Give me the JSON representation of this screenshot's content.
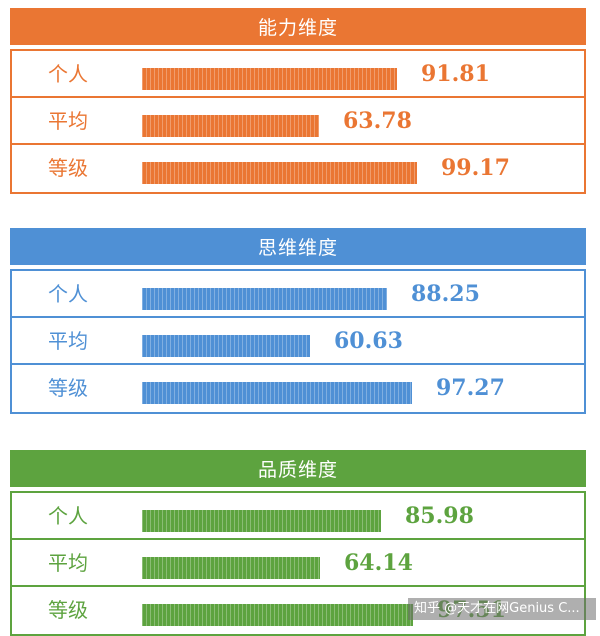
{
  "chart_data": [
    {
      "type": "bar",
      "title": "能力维度",
      "color": "#ea7633",
      "categories": [
        "个人",
        "平均",
        "等级"
      ],
      "values": [
        91.81,
        63.78,
        99.17
      ]
    },
    {
      "type": "bar",
      "title": "思维维度",
      "color": "#4f90d5",
      "categories": [
        "个人",
        "平均",
        "等级"
      ],
      "values": [
        88.25,
        60.63,
        97.27
      ]
    },
    {
      "type": "bar",
      "title": "品质维度",
      "color": "#5da33f",
      "categories": [
        "个人",
        "平均",
        "等级"
      ],
      "values": [
        85.98,
        64.14,
        97.51
      ]
    }
  ],
  "watermark": "知乎 @天才在网Genius C..."
}
